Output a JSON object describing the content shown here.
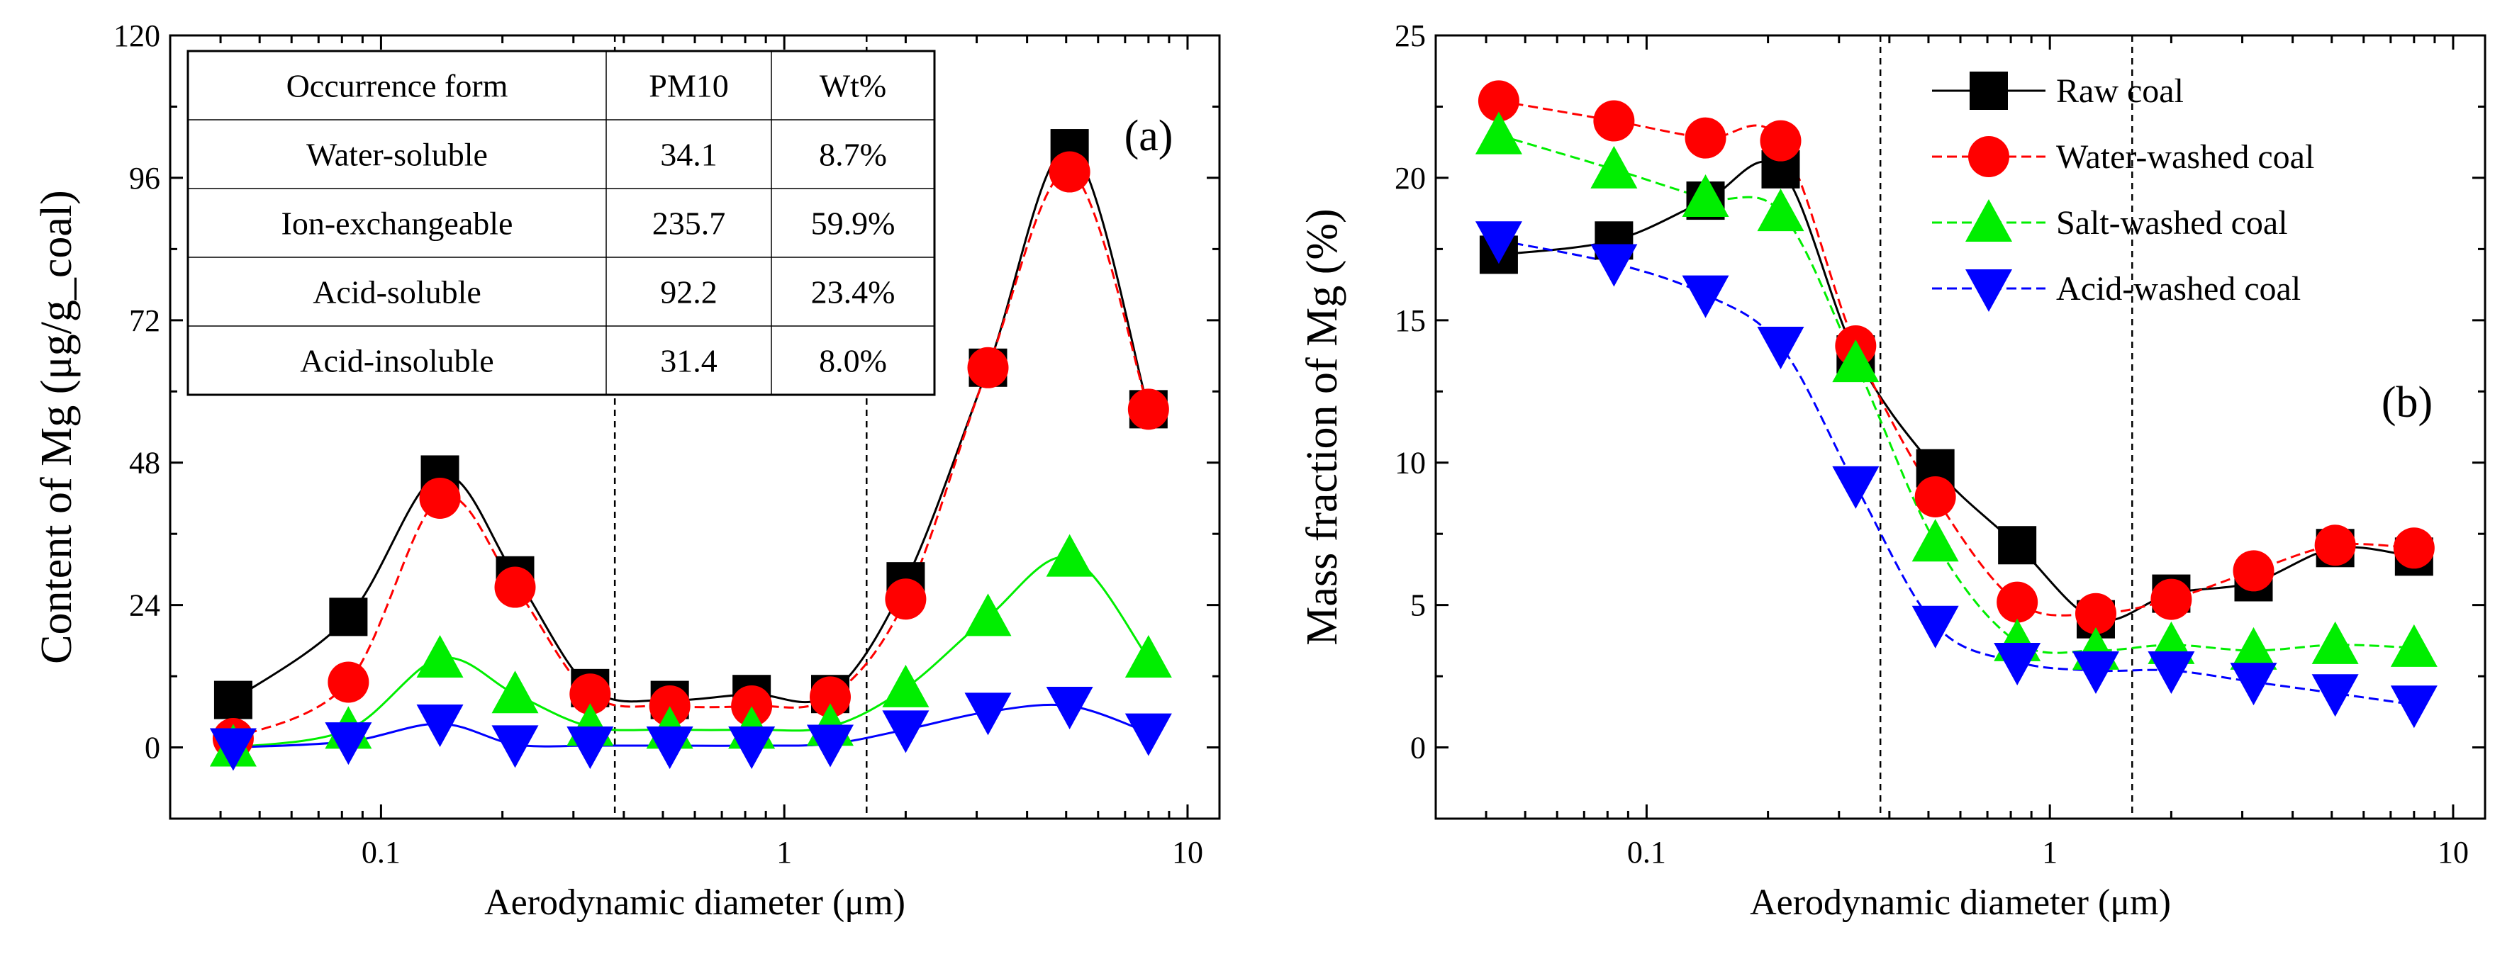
{
  "chart_data": [
    {
      "type": "line",
      "panel_label": "(a)",
      "xlabel": "Aerodynamic diameter (μm)",
      "ylabel": "Content of Mg (μg/g_coal)",
      "xscale": "log",
      "xlim": [
        0.03,
        12
      ],
      "ylim": [
        -12,
        120
      ],
      "yticks": [
        "0",
        "24",
        "48",
        "72",
        "96",
        "120"
      ],
      "xticks": [
        "0.1",
        "1",
        "10"
      ],
      "reference_lines_x": [
        0.38,
        1.6
      ],
      "x": [
        0.043,
        0.083,
        0.14,
        0.215,
        0.33,
        0.52,
        0.83,
        1.3,
        2.0,
        3.2,
        5.1,
        8.0
      ],
      "series": [
        {
          "name": "Raw coal",
          "color": "#000000",
          "marker": "square",
          "dash": "",
          "values": [
            8,
            22,
            46,
            29,
            10,
            8,
            9,
            9,
            28,
            64,
            101,
            57
          ]
        },
        {
          "name": "Water-washed coal",
          "color": "#ff0000",
          "marker": "circle",
          "dash": "14 7",
          "values": [
            1.5,
            11,
            42,
            27,
            9,
            7,
            7,
            8.5,
            25,
            64,
            97,
            57
          ]
        },
        {
          "name": "Salt-washed coal",
          "color": "#00ee00",
          "marker": "triangle-up",
          "dash": "",
          "values": [
            0,
            3,
            15,
            9,
            3.5,
            3,
            3,
            3.5,
            10,
            22,
            32,
            15
          ]
        },
        {
          "name": "Acid-washed coal",
          "color": "#0000ff",
          "marker": "triangle-down",
          "dash": "",
          "values": [
            0,
            1,
            4,
            0.5,
            0.3,
            0.3,
            0.3,
            0.6,
            3,
            6,
            7,
            2.5
          ]
        }
      ],
      "table": {
        "headers": [
          "Occurrence form",
          "PM10",
          "Wt%"
        ],
        "rows": [
          [
            "Water-soluble",
            "34.1",
            "8.7%"
          ],
          [
            "Ion-exchangeable",
            "235.7",
            "59.9%"
          ],
          [
            "Acid-soluble",
            "92.2",
            "23.4%"
          ],
          [
            "Acid-insoluble",
            "31.4",
            "8.0%"
          ]
        ]
      }
    },
    {
      "type": "line",
      "panel_label": "(b)",
      "xlabel": "Aerodynamic diameter (μm)",
      "ylabel": "Mass fraction of Mg  (%)",
      "xscale": "log",
      "xlim": [
        0.03,
        12
      ],
      "ylim": [
        -2.5,
        25
      ],
      "yticks": [
        "0",
        "5",
        "10",
        "15",
        "20",
        "25"
      ],
      "xticks": [
        "0.1",
        "1",
        "10"
      ],
      "reference_lines_x": [
        0.38,
        1.6
      ],
      "x": [
        0.043,
        0.083,
        0.14,
        0.215,
        0.33,
        0.52,
        0.83,
        1.3,
        2.0,
        3.2,
        5.1,
        8.0
      ],
      "series": [
        {
          "name": "Raw coal",
          "color": "#000000",
          "marker": "square",
          "dash": "",
          "values": [
            17.3,
            17.8,
            19.2,
            20.3,
            13.8,
            9.8,
            7.1,
            4.5,
            5.4,
            5.8,
            7.0,
            6.7
          ]
        },
        {
          "name": "Water-washed coal",
          "color": "#ff0000",
          "marker": "circle",
          "dash": "14 7",
          "values": [
            22.7,
            22.0,
            21.4,
            21.3,
            14.1,
            8.8,
            5.1,
            4.7,
            5.2,
            6.2,
            7.1,
            7.0
          ]
        },
        {
          "name": "Salt-washed coal",
          "color": "#00ee00",
          "marker": "triangle-up",
          "dash": "14 7",
          "values": [
            21.5,
            20.3,
            19.3,
            18.8,
            13.5,
            7.2,
            3.7,
            3.4,
            3.6,
            3.4,
            3.6,
            3.5
          ]
        },
        {
          "name": "Acid-washed coal",
          "color": "#0000ff",
          "marker": "triangle-down",
          "dash": "14 7",
          "values": [
            17.8,
            17.0,
            15.9,
            14.1,
            9.2,
            4.3,
            3.0,
            2.7,
            2.7,
            2.3,
            1.9,
            1.5
          ]
        }
      ],
      "legend_position": "top-right"
    }
  ]
}
